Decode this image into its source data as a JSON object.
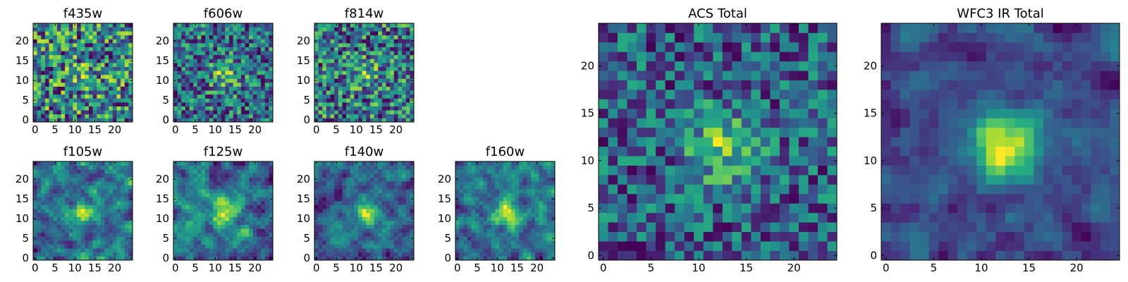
{
  "figure": {
    "colormap": "viridis",
    "colors": {
      "low": "#440154",
      "mid": "#21918c",
      "high": "#fde725",
      "frame": "#000000",
      "background": "#ffffff"
    }
  },
  "chart_data": [
    {
      "type": "heatmap",
      "title": "f435w",
      "grid_size": [
        25,
        25
      ],
      "xlim": [
        -0.5,
        24.5
      ],
      "ylim": [
        -0.5,
        24.5
      ],
      "xticks": [
        0,
        5,
        10,
        15,
        20
      ],
      "yticks": [
        0,
        5,
        10,
        15,
        20
      ],
      "smoothing": 0,
      "peak": 0.15,
      "noise_level": 0.9,
      "seed": 11
    },
    {
      "type": "heatmap",
      "title": "f606w",
      "grid_size": [
        25,
        25
      ],
      "xlim": [
        -0.5,
        24.5
      ],
      "ylim": [
        -0.5,
        24.5
      ],
      "xticks": [
        0,
        5,
        10,
        15,
        20
      ],
      "yticks": [
        0,
        5,
        10,
        15,
        20
      ],
      "smoothing": 0,
      "peak": 0.45,
      "noise_level": 0.9,
      "seed": 23
    },
    {
      "type": "heatmap",
      "title": "f814w",
      "grid_size": [
        25,
        25
      ],
      "xlim": [
        -0.5,
        24.5
      ],
      "ylim": [
        -0.5,
        24.5
      ],
      "xticks": [
        0,
        5,
        10,
        15,
        20
      ],
      "yticks": [
        0,
        5,
        10,
        15,
        20
      ],
      "smoothing": 0,
      "peak": 0.25,
      "noise_level": 0.9,
      "seed": 37
    },
    {
      "type": "heatmap",
      "title": "f105w",
      "grid_size": [
        25,
        25
      ],
      "xlim": [
        -0.5,
        24.5
      ],
      "ylim": [
        -0.5,
        24.5
      ],
      "xticks": [
        0,
        5,
        10,
        15,
        20
      ],
      "yticks": [
        0,
        5,
        10,
        15,
        20
      ],
      "smoothing": 1,
      "peak": 0.3,
      "noise_level": 0.8,
      "seed": 41
    },
    {
      "type": "heatmap",
      "title": "f125w",
      "grid_size": [
        25,
        25
      ],
      "xlim": [
        -0.5,
        24.5
      ],
      "ylim": [
        -0.5,
        24.5
      ],
      "xticks": [
        0,
        5,
        10,
        15,
        20
      ],
      "yticks": [
        0,
        5,
        10,
        15,
        20
      ],
      "smoothing": 1,
      "peak": 0.35,
      "noise_level": 0.8,
      "seed": 53
    },
    {
      "type": "heatmap",
      "title": "f140w",
      "grid_size": [
        25,
        25
      ],
      "xlim": [
        -0.5,
        24.5
      ],
      "ylim": [
        -0.5,
        24.5
      ],
      "xticks": [
        0,
        5,
        10,
        15,
        20
      ],
      "yticks": [
        0,
        5,
        10,
        15,
        20
      ],
      "smoothing": 1,
      "peak": 0.35,
      "noise_level": 0.8,
      "seed": 67
    },
    {
      "type": "heatmap",
      "title": "f160w",
      "grid_size": [
        25,
        25
      ],
      "xlim": [
        -0.5,
        24.5
      ],
      "ylim": [
        -0.5,
        24.5
      ],
      "xticks": [
        0,
        5,
        10,
        15,
        20
      ],
      "yticks": [
        0,
        5,
        10,
        15,
        20
      ],
      "smoothing": 1,
      "peak": 0.4,
      "noise_level": 0.8,
      "seed": 79
    },
    {
      "type": "heatmap",
      "title": "ACS Total",
      "grid_size": [
        25,
        25
      ],
      "xlim": [
        -0.5,
        24.5
      ],
      "ylim": [
        -0.5,
        24.5
      ],
      "xticks": [
        0,
        5,
        10,
        15,
        20
      ],
      "yticks": [
        0,
        5,
        10,
        15,
        20
      ],
      "smoothing": 0,
      "peak": 0.5,
      "noise_level": 0.7,
      "seed": 97
    },
    {
      "type": "heatmap",
      "title": "WFC3 IR Total",
      "grid_size": [
        25,
        25
      ],
      "xlim": [
        -0.5,
        24.5
      ],
      "ylim": [
        -0.5,
        24.5
      ],
      "xticks": [
        0,
        5,
        10,
        15,
        20
      ],
      "yticks": [
        0,
        5,
        10,
        15,
        20
      ],
      "smoothing": 1,
      "peak": 0.6,
      "noise_level": 0.6,
      "seed": 113
    }
  ]
}
